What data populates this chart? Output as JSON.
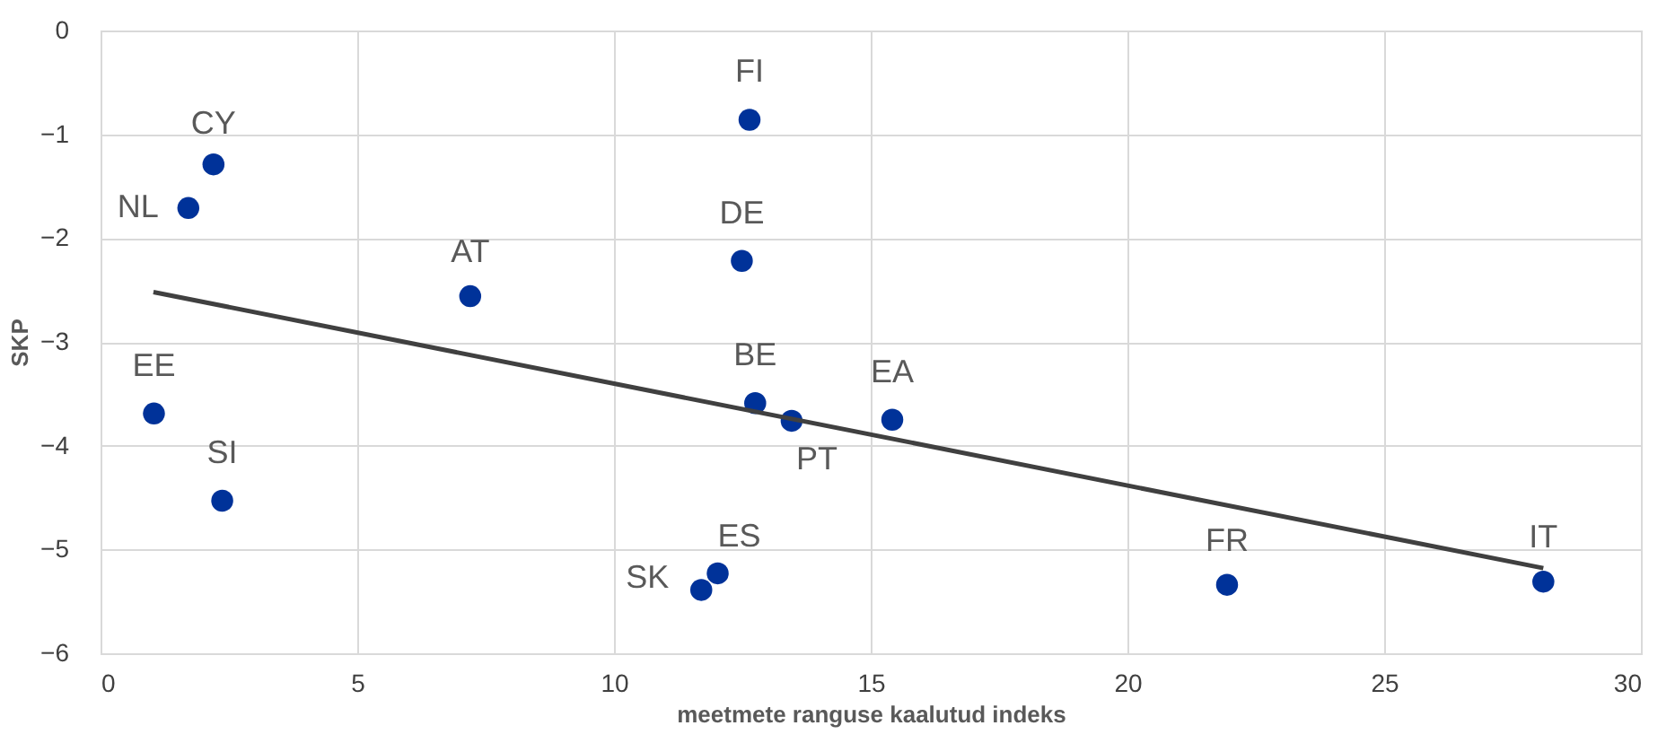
{
  "chart_data": {
    "type": "scatter",
    "xlabel": "meetmete ranguse kaalutud indeks",
    "ylabel": "SKP",
    "xlim": [
      0,
      30
    ],
    "xticks": [
      0,
      5,
      10,
      15,
      20,
      25,
      30
    ],
    "ylim": [
      -6,
      0
    ],
    "yticks": [
      -6,
      -5,
      -4,
      -3,
      -2,
      -1,
      0
    ],
    "grid": true,
    "series": [
      {
        "marker": "circle",
        "color": "#003299",
        "x": [
          12.64,
          2.2,
          1.71,
          7.2,
          12.49,
          1.04,
          12.75,
          13.46,
          15.42,
          2.37,
          11.7,
          12.02,
          21.94,
          28.1
        ],
        "values": [
          -0.86,
          -1.29,
          -1.71,
          -2.56,
          -2.22,
          -3.69,
          -3.59,
          -3.76,
          -3.75,
          -4.53,
          -5.39,
          -5.23,
          -5.34,
          -5.31
        ]
      },
      {
        "type": "line",
        "color": "#404040",
        "x": [
          1.03,
          28.1
        ],
        "values": [
          -2.52,
          -5.18
        ]
      }
    ],
    "annotations": [
      {
        "text": "FI",
        "x": 12.64,
        "y": -0.86
      },
      {
        "text": "CY",
        "x": 2.2,
        "y": -1.29
      },
      {
        "text": "NL",
        "x": 1.71,
        "y": -1.71
      },
      {
        "text": "AT",
        "x": 7.2,
        "y": -2.56
      },
      {
        "text": "DE",
        "x": 12.49,
        "y": -2.22
      },
      {
        "text": "EE",
        "x": 1.04,
        "y": -3.69
      },
      {
        "text": "BE",
        "x": 12.75,
        "y": -3.59
      },
      {
        "text": "PT",
        "x": 13.46,
        "y": -3.76
      },
      {
        "text": "EA",
        "x": 15.42,
        "y": -3.75
      },
      {
        "text": "SI",
        "x": 2.37,
        "y": -4.53
      },
      {
        "text": "SK",
        "x": 11.7,
        "y": -5.39
      },
      {
        "text": "ES",
        "x": 12.02,
        "y": -5.23
      },
      {
        "text": "FR",
        "x": 21.94,
        "y": -5.34
      },
      {
        "text": "IT",
        "x": 28.1,
        "y": -5.31
      }
    ]
  }
}
